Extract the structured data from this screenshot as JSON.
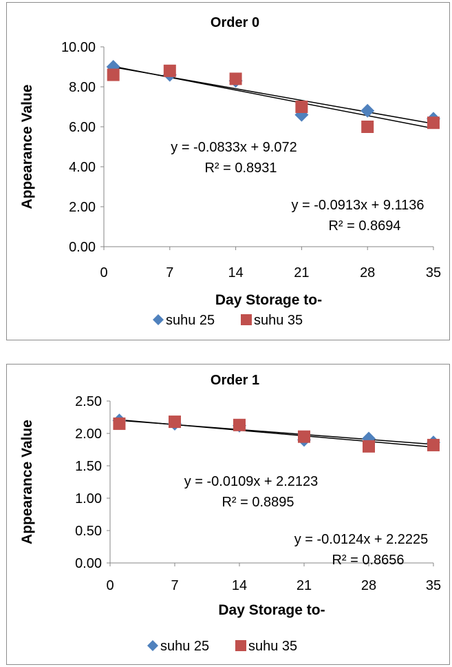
{
  "chart_data": [
    {
      "type": "scatter",
      "title": "Order 0",
      "xlabel": "Day Storage to-",
      "ylabel": "Appearance Value",
      "xlim": [
        0,
        35
      ],
      "ylim": [
        0,
        10
      ],
      "x_ticks": [
        "0",
        "7",
        "14",
        "21",
        "28",
        "35"
      ],
      "y_ticks": [
        "0.00",
        "2.00",
        "4.00",
        "6.00",
        "8.00",
        "10.00"
      ],
      "grid": false,
      "legend_position": "bottom",
      "series": [
        {
          "name": "suhu 25",
          "marker": "diamond",
          "color": "#4f81bd",
          "x": [
            1,
            7,
            14,
            21,
            28,
            35
          ],
          "y": [
            9.0,
            8.6,
            8.3,
            6.6,
            6.8,
            6.4
          ],
          "trendline": {
            "slope": -0.0833,
            "intercept": 9.072
          }
        },
        {
          "name": "suhu 35",
          "marker": "square",
          "color": "#c0504d",
          "x": [
            1,
            7,
            14,
            21,
            28,
            35
          ],
          "y": [
            8.6,
            8.8,
            8.4,
            7.0,
            6.0,
            6.2
          ],
          "trendline": {
            "slope": -0.0913,
            "intercept": 9.1136
          }
        }
      ],
      "annotations": [
        {
          "line1": "y = -0.0833x + 9.072",
          "line2": "R² = 0.8931"
        },
        {
          "line1": "y = -0.0913x + 9.1136",
          "line2": "R² = 0.8694"
        }
      ]
    },
    {
      "type": "scatter",
      "title": "Order 1",
      "xlabel": "Day Storage to-",
      "ylabel": "Appearance Value",
      "xlim": [
        0,
        35
      ],
      "ylim": [
        0,
        2.5
      ],
      "x_ticks": [
        "0",
        "7",
        "14",
        "21",
        "28",
        "35"
      ],
      "y_ticks": [
        "0.00",
        "0.50",
        "1.00",
        "1.50",
        "2.00",
        "2.50"
      ],
      "grid": false,
      "legend_position": "bottom",
      "series": [
        {
          "name": "suhu 25",
          "marker": "diamond",
          "color": "#4f81bd",
          "x": [
            1,
            7,
            14,
            21,
            28,
            35
          ],
          "y": [
            2.2,
            2.15,
            2.12,
            1.9,
            1.92,
            1.86
          ],
          "trendline": {
            "slope": -0.0109,
            "intercept": 2.2123
          }
        },
        {
          "name": "suhu 35",
          "marker": "square",
          "color": "#c0504d",
          "x": [
            1,
            7,
            14,
            21,
            28,
            35
          ],
          "y": [
            2.15,
            2.18,
            2.13,
            1.95,
            1.8,
            1.82
          ],
          "trendline": {
            "slope": -0.0124,
            "intercept": 2.2225
          }
        }
      ],
      "annotations": [
        {
          "line1": "y = -0.0109x + 2.2123",
          "line2": "R² = 0.8895"
        },
        {
          "line1": "y = -0.0124x + 2.2225",
          "line2": "R² = 0.8656"
        }
      ]
    }
  ]
}
